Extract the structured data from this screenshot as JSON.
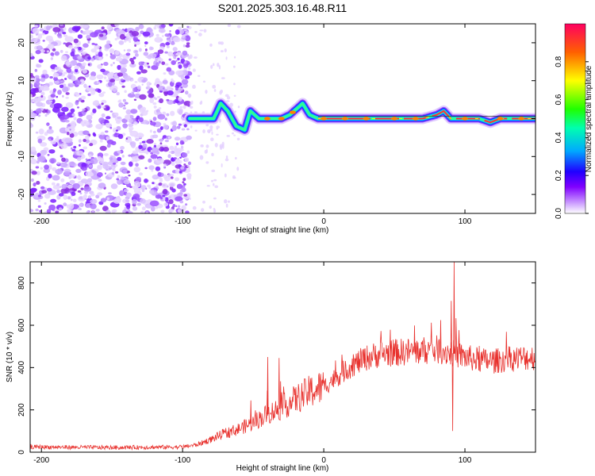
{
  "title": "S201.2025.303.16.48.R11",
  "chart_data": [
    {
      "type": "heatmap",
      "name": "spectrogram",
      "xlabel": "Height of straight line (km)",
      "ylabel": "Frequency (Hz)",
      "xlim": [
        -208,
        150
      ],
      "ylim": [
        -25,
        25
      ],
      "xticks": [
        -200,
        -100,
        0,
        100
      ],
      "yticks": [
        -20,
        -10,
        0,
        10,
        20
      ],
      "noise_region_x": [
        -208,
        -95
      ],
      "signal_track": [
        {
          "x": -95,
          "y": 0
        },
        {
          "x": -85,
          "y": 0
        },
        {
          "x": -78,
          "y": 0
        },
        {
          "x": -73,
          "y": 4
        },
        {
          "x": -68,
          "y": 2
        },
        {
          "x": -62,
          "y": -2
        },
        {
          "x": -56,
          "y": -3
        },
        {
          "x": -52,
          "y": 2
        },
        {
          "x": -46,
          "y": 0
        },
        {
          "x": -38,
          "y": 0
        },
        {
          "x": -30,
          "y": 0
        },
        {
          "x": -24,
          "y": 1
        },
        {
          "x": -18,
          "y": 3
        },
        {
          "x": -15,
          "y": 4
        },
        {
          "x": -10,
          "y": 1
        },
        {
          "x": -4,
          "y": 0
        },
        {
          "x": 10,
          "y": 0
        },
        {
          "x": 40,
          "y": 0
        },
        {
          "x": 70,
          "y": 0
        },
        {
          "x": 80,
          "y": 1
        },
        {
          "x": 85,
          "y": 2
        },
        {
          "x": 90,
          "y": 0
        },
        {
          "x": 110,
          "y": 0
        },
        {
          "x": 118,
          "y": -1
        },
        {
          "x": 125,
          "y": 0
        },
        {
          "x": 150,
          "y": 0
        }
      ],
      "colorbar": {
        "label": "Normalized spectral amplitude",
        "ticks": [
          "0.0",
          "0.2",
          "0.4",
          "0.6",
          "0.8"
        ],
        "range": [
          0,
          1
        ]
      }
    },
    {
      "type": "line",
      "name": "snr",
      "xlabel": "Height of straight line (km)",
      "ylabel": "SNR (10 * v/v)",
      "xlim": [
        -208,
        150
      ],
      "ylim": [
        0,
        900
      ],
      "xticks": [
        -200,
        -100,
        0,
        100
      ],
      "yticks": [
        0,
        200,
        400,
        600,
        800
      ],
      "color": "#e8322e",
      "envelope": [
        {
          "x": -208,
          "y": 25
        },
        {
          "x": -150,
          "y": 22
        },
        {
          "x": -100,
          "y": 25
        },
        {
          "x": -90,
          "y": 35
        },
        {
          "x": -80,
          "y": 60
        },
        {
          "x": -70,
          "y": 90
        },
        {
          "x": -60,
          "y": 110
        },
        {
          "x": -50,
          "y": 140
        },
        {
          "x": -40,
          "y": 180
        },
        {
          "x": -30,
          "y": 210
        },
        {
          "x": -20,
          "y": 250
        },
        {
          "x": -10,
          "y": 285
        },
        {
          "x": 0,
          "y": 310
        },
        {
          "x": 10,
          "y": 360
        },
        {
          "x": 20,
          "y": 410
        },
        {
          "x": 30,
          "y": 445
        },
        {
          "x": 40,
          "y": 465
        },
        {
          "x": 50,
          "y": 470
        },
        {
          "x": 60,
          "y": 475
        },
        {
          "x": 70,
          "y": 480
        },
        {
          "x": 80,
          "y": 485
        },
        {
          "x": 90,
          "y": 470
        },
        {
          "x": 100,
          "y": 450
        },
        {
          "x": 110,
          "y": 435
        },
        {
          "x": 120,
          "y": 430
        },
        {
          "x": 130,
          "y": 440
        },
        {
          "x": 140,
          "y": 445
        },
        {
          "x": 150,
          "y": 450
        }
      ],
      "spikes": [
        {
          "x": -52,
          "y": 245
        },
        {
          "x": -40,
          "y": 450
        },
        {
          "x": -38,
          "y": 180
        },
        {
          "x": -32,
          "y": 445
        },
        {
          "x": 90,
          "y": 715
        },
        {
          "x": 92,
          "y": 900
        },
        {
          "x": 91,
          "y": 100
        }
      ]
    }
  ]
}
